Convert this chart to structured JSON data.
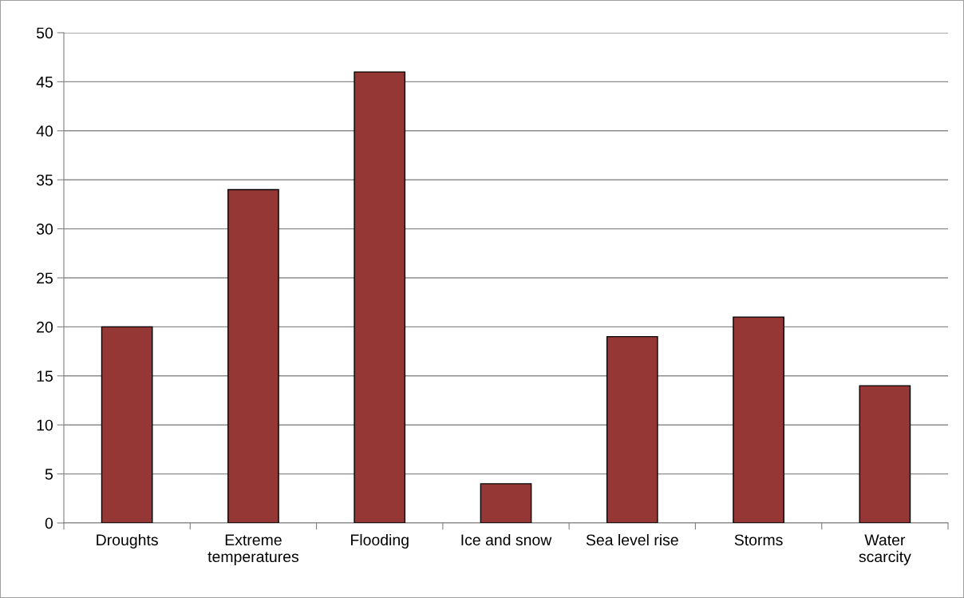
{
  "chart_data": {
    "type": "bar",
    "categories": [
      "Droughts",
      "Extreme\ntemperatures",
      "Flooding",
      "Ice and snow",
      "Sea level rise",
      "Storms",
      "Water\nscarcity"
    ],
    "values": [
      20,
      34,
      46,
      4,
      19,
      21,
      14
    ],
    "color": "#953735",
    "ylim": [
      0,
      50
    ],
    "yticks": [
      0,
      5,
      10,
      15,
      20,
      25,
      30,
      35,
      40,
      45,
      50
    ],
    "grid": "y",
    "legend": false
  }
}
